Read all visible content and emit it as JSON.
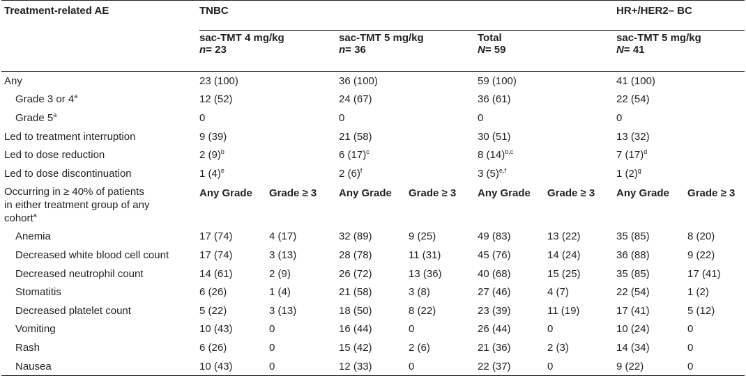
{
  "header": {
    "col0": "Treatment-related AE",
    "tnbc": "TNBC",
    "hr": "HR+/HER2– BC",
    "groups": [
      {
        "line1": "sac-TMT 4 mg/kg",
        "n_label": "n",
        "n_value": "= 23"
      },
      {
        "line1": "sac-TMT 5 mg/kg",
        "n_label": "n",
        "n_value": "= 36"
      },
      {
        "line1": "Total",
        "n_label": "N",
        "n_value": "= 59"
      },
      {
        "line1": "sac-TMT 5 mg/kg",
        "n_label": "N",
        "n_value": "= 41"
      }
    ]
  },
  "rows_top": [
    {
      "label": "Any",
      "indent": false,
      "cells": [
        "23 (100)",
        "36 (100)",
        "59 (100)",
        "41 (100)"
      ],
      "sups": [
        "",
        "",
        "",
        ""
      ],
      "label_sup": ""
    },
    {
      "label": "Grade 3 or 4",
      "indent": true,
      "label_sup": "a",
      "cells": [
        "12 (52)",
        "24 (67)",
        "36 (61)",
        "22 (54)"
      ],
      "sups": [
        "",
        "",
        "",
        ""
      ]
    },
    {
      "label": "Grade 5",
      "indent": true,
      "label_sup": "a",
      "cells": [
        "0",
        "0",
        "0",
        "0"
      ],
      "sups": [
        "",
        "",
        "",
        ""
      ]
    },
    {
      "label": "Led to treatment interruption",
      "indent": false,
      "label_sup": "",
      "cells": [
        "9 (39)",
        "21 (58)",
        "30 (51)",
        "13 (32)"
      ],
      "sups": [
        "",
        "",
        "",
        ""
      ]
    },
    {
      "label": "Led to dose reduction",
      "indent": false,
      "label_sup": "",
      "cells": [
        "2 (9)",
        "6 (17)",
        "8 (14)",
        "7 (17)"
      ],
      "sups": [
        "b",
        "c",
        "b,c",
        "d"
      ]
    },
    {
      "label": "Led to dose discontinuation",
      "indent": false,
      "label_sup": "",
      "cells": [
        "1 (4)",
        "2 (6)",
        "3 (5)",
        "1 (2)"
      ],
      "sups": [
        "e",
        "f",
        "e,f",
        "g"
      ]
    }
  ],
  "occurring": {
    "line1": "Occurring in ≥ 40% of patients",
    "line2": "in either treatment group of any",
    "line3": "cohort",
    "line3_sup": "a",
    "any_grade": "Any Grade",
    "grade3": "Grade ≥ 3"
  },
  "rows_ae": [
    {
      "label": "Anemia",
      "cells": [
        "17 (74)",
        "4 (17)",
        "32 (89)",
        "9 (25)",
        "49 (83)",
        "13 (22)",
        "35 (85)",
        "8 (20)"
      ]
    },
    {
      "label": "Decreased white blood cell count",
      "cells": [
        "17 (74)",
        "3 (13)",
        "28 (78)",
        "11 (31)",
        "45 (76)",
        "14 (24)",
        "36 (88)",
        "9 (22)"
      ]
    },
    {
      "label": "Decreased neutrophil count",
      "cells": [
        "14 (61)",
        "2 (9)",
        "26 (72)",
        "13 (36)",
        "40 (68)",
        "15 (25)",
        "35 (85)",
        "17 (41)"
      ]
    },
    {
      "label": "Stomatitis",
      "cells": [
        "6 (26)",
        "1 (4)",
        "21 (58)",
        "3 (8)",
        "27 (46)",
        "4 (7)",
        "22 (54)",
        "1 (2)"
      ]
    },
    {
      "label": "Decreased platelet count",
      "cells": [
        "5 (22)",
        "3 (13)",
        "18 (50)",
        "8 (22)",
        "23 (39)",
        "11 (19)",
        "17 (41)",
        "5 (12)"
      ]
    },
    {
      "label": "Vomiting",
      "cells": [
        "10 (43)",
        "0",
        "16 (44)",
        "0",
        "26 (44)",
        "0",
        "10 (24)",
        "0"
      ]
    },
    {
      "label": "Rash",
      "cells": [
        "6 (26)",
        "0",
        "15 (42)",
        "2 (6)",
        "21 (36)",
        "2 (3)",
        "14 (34)",
        "0"
      ]
    },
    {
      "label": "Nausea",
      "cells": [
        "10 (43)",
        "0",
        "12 (33)",
        "0",
        "22 (37)",
        "0",
        "9 (22)",
        "0"
      ]
    }
  ]
}
